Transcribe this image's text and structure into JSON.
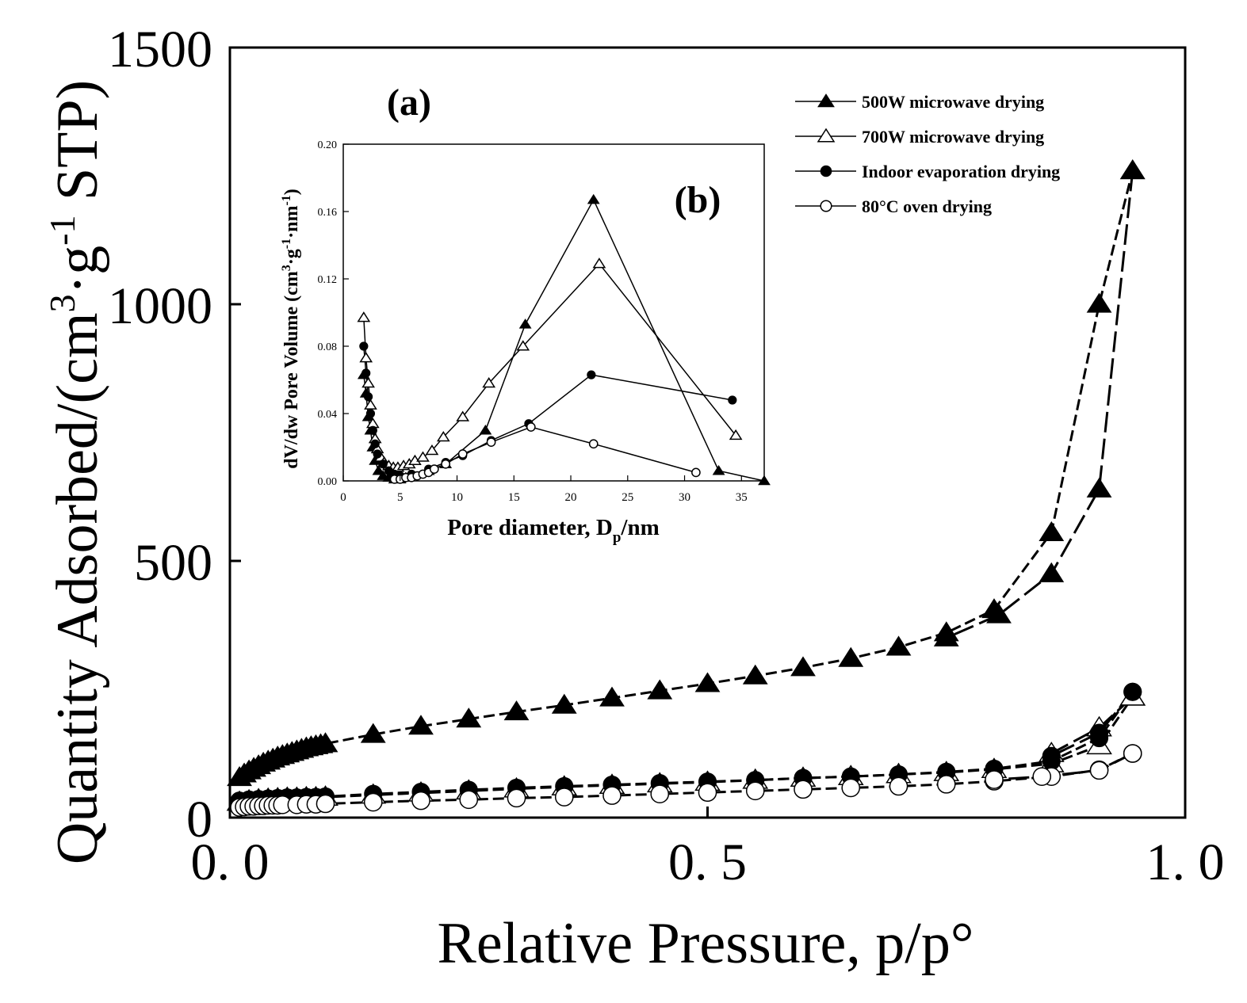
{
  "chart_data": [
    {
      "id": "main",
      "type": "scatter",
      "panel_label": "(a)",
      "title": "",
      "xlabel": "Relative Pressure, p/p°",
      "ylabel_parts": [
        "Quantity Adsorbed/(cm",
        "3",
        "·g",
        "-1",
        " STP)"
      ],
      "xlim": [
        0,
        1.0
      ],
      "ylim": [
        0,
        1500
      ],
      "x_ticks": [
        0,
        0.5,
        1.0
      ],
      "x_tick_labels": [
        "0. 0",
        "0. 5",
        "1. 0"
      ],
      "y_ticks": [
        0,
        500,
        1000,
        1500
      ],
      "y_tick_labels": [
        "0",
        "500",
        "1000",
        "1500"
      ],
      "grid": false,
      "legend_position": "top-right",
      "series": [
        {
          "name": "500W microwave drying",
          "marker": "triangle-filled",
          "adsorption": {
            "x": [
              0.01,
              0.015,
              0.02,
              0.025,
              0.03,
              0.035,
              0.04,
              0.045,
              0.05,
              0.055,
              0.06,
              0.065,
              0.07,
              0.075,
              0.08,
              0.085,
              0.09,
              0.095,
              0.1,
              0.15,
              0.2,
              0.25,
              0.3,
              0.35,
              0.4,
              0.45,
              0.5,
              0.55,
              0.6,
              0.65,
              0.7,
              0.75,
              0.8,
              0.86,
              0.91,
              0.945
            ],
            "y": [
              78,
              85,
              91,
              96,
              101,
              106,
              110,
              114,
              118,
              121,
              124,
              127,
              130,
              133,
              136,
              138,
              140,
              142,
              144,
              162,
              178,
              192,
              206,
              219,
              233,
              247,
              261,
              276,
              292,
              310,
              332,
              360,
              405,
              555,
              1000,
              1260
            ]
          },
          "desorption": {
            "x": [
              0.945,
              0.91,
              0.86,
              0.805,
              0.75
            ],
            "y": [
              1260,
              640,
              475,
              395,
              350
            ]
          }
        },
        {
          "name": "700W microwave drying",
          "marker": "triangle-open",
          "adsorption": {
            "x": [
              0.01,
              0.02,
              0.03,
              0.04,
              0.05,
              0.06,
              0.07,
              0.08,
              0.09,
              0.1,
              0.15,
              0.2,
              0.25,
              0.3,
              0.35,
              0.4,
              0.45,
              0.5,
              0.55,
              0.6,
              0.65,
              0.7,
              0.75,
              0.8,
              0.86,
              0.91,
              0.945
            ],
            "y": [
              30,
              33,
              35,
              36,
              37,
              38,
              38,
              39,
              39,
              40,
              44,
              48,
              52,
              56,
              60,
              63,
              66,
              69,
              73,
              77,
              80,
              84,
              88,
              94,
              105,
              140,
              235
            ]
          },
          "desorption": {
            "x": [
              0.945,
              0.91,
              0.86
            ],
            "y": [
              235,
              175,
              125
            ]
          }
        },
        {
          "name": "Indoor evaporation drying",
          "marker": "circle-filled",
          "adsorption": {
            "x": [
              0.01,
              0.02,
              0.03,
              0.04,
              0.05,
              0.06,
              0.07,
              0.08,
              0.09,
              0.1,
              0.15,
              0.2,
              0.25,
              0.3,
              0.35,
              0.4,
              0.45,
              0.5,
              0.55,
              0.6,
              0.65,
              0.7,
              0.75,
              0.8,
              0.86,
              0.91,
              0.945
            ],
            "y": [
              33,
              35,
              36,
              37,
              38,
              39,
              39,
              40,
              40,
              41,
              46,
              50,
              54,
              58,
              61,
              64,
              67,
              70,
              73,
              77,
              80,
              84,
              89,
              95,
              110,
              155,
              245
            ]
          },
          "desorption": {
            "x": [
              0.945,
              0.91,
              0.86
            ],
            "y": [
              245,
              165,
              120
            ]
          }
        },
        {
          "name": "80°C oven drying",
          "marker": "circle-open",
          "adsorption": {
            "x": [
              0.01,
              0.015,
              0.02,
              0.025,
              0.03,
              0.035,
              0.04,
              0.045,
              0.05,
              0.055,
              0.07,
              0.08,
              0.09,
              0.1,
              0.15,
              0.2,
              0.25,
              0.3,
              0.35,
              0.4,
              0.45,
              0.5,
              0.55,
              0.6,
              0.65,
              0.7,
              0.75,
              0.8,
              0.86,
              0.91,
              0.945
            ],
            "y": [
              20,
              21,
              22,
              22,
              23,
              23,
              24,
              24,
              24,
              25,
              25,
              26,
              26,
              27,
              30,
              33,
              35,
              38,
              40,
              43,
              46,
              49,
              52,
              55,
              58,
              61,
              65,
              71,
              80,
              93,
              125
            ]
          },
          "desorption": {
            "x": [
              0.945,
              0.91,
              0.85,
              0.8
            ],
            "y": [
              125,
              92,
              80,
              74
            ]
          }
        }
      ]
    },
    {
      "id": "inset",
      "type": "line",
      "panel_label": "(b)",
      "title": "",
      "xlabel_parts": [
        "Pore diameter, D",
        "p",
        "/nm"
      ],
      "ylabel_parts": [
        "dV/dw Pore Volume (cm",
        "3",
        "·g",
        "-1",
        "·nm",
        "-1",
        ")"
      ],
      "xlim": [
        0,
        37
      ],
      "ylim": [
        0,
        0.2
      ],
      "x_ticks": [
        0,
        5,
        10,
        15,
        20,
        25,
        30,
        35
      ],
      "x_tick_labels": [
        "0",
        "5",
        "10",
        "15",
        "20",
        "25",
        "30",
        "35"
      ],
      "y_ticks": [
        0,
        0.04,
        0.08,
        0.12,
        0.16,
        0.2
      ],
      "y_tick_labels": [
        "0.00",
        "0.04",
        "0.08",
        "0.12",
        "0.16",
        "0.20"
      ],
      "grid": false,
      "series": [
        {
          "name": "500W microwave drying",
          "marker": "triangle-filled",
          "x": [
            1.8,
            2.0,
            2.2,
            2.4,
            2.6,
            2.8,
            3.1,
            3.5,
            4.0,
            4.5,
            5.0,
            5.5,
            6.0,
            7.5,
            9.0,
            12.5,
            16.0,
            22.0,
            33.0,
            37.0
          ],
          "y": [
            0.063,
            0.052,
            0.038,
            0.03,
            0.02,
            0.012,
            0.006,
            0.003,
            0.002,
            0.001,
            0.001,
            0.002,
            0.003,
            0.006,
            0.01,
            0.03,
            0.093,
            0.167,
            0.006,
            0.0
          ]
        },
        {
          "name": "700W microwave drying",
          "marker": "triangle-open",
          "x": [
            1.8,
            2.0,
            2.2,
            2.4,
            2.6,
            2.8,
            3.0,
            3.3,
            3.6,
            4.0,
            4.4,
            4.8,
            5.3,
            5.8,
            6.3,
            7.0,
            7.8,
            8.8,
            10.5,
            12.8,
            15.8,
            22.5,
            34.5
          ],
          "y": [
            0.097,
            0.073,
            0.058,
            0.045,
            0.034,
            0.025,
            0.019,
            0.014,
            0.011,
            0.009,
            0.008,
            0.008,
            0.009,
            0.01,
            0.012,
            0.014,
            0.018,
            0.026,
            0.038,
            0.058,
            0.08,
            0.129,
            0.027
          ]
        },
        {
          "name": "Indoor evaporation drying",
          "marker": "circle-filled",
          "x": [
            1.8,
            2.0,
            2.2,
            2.4,
            2.6,
            2.8,
            3.0,
            3.5,
            4.0,
            4.5,
            5.0,
            6.0,
            7.5,
            9.0,
            10.5,
            13.0,
            16.3,
            21.8,
            34.2
          ],
          "y": [
            0.08,
            0.064,
            0.05,
            0.04,
            0.03,
            0.022,
            0.016,
            0.01,
            0.006,
            0.004,
            0.003,
            0.004,
            0.007,
            0.011,
            0.015,
            0.024,
            0.034,
            0.063,
            0.048
          ]
        },
        {
          "name": "80°C oven drying",
          "marker": "circle-open",
          "x": [
            4.5,
            5.0,
            5.5,
            6.0,
            6.5,
            7.0,
            7.5,
            8.0,
            9.0,
            10.5,
            13.0,
            16.5,
            22.0,
            31.0
          ],
          "y": [
            0.001,
            0.001,
            0.002,
            0.002,
            0.003,
            0.004,
            0.005,
            0.007,
            0.01,
            0.016,
            0.023,
            0.032,
            0.022,
            0.005
          ]
        }
      ]
    }
  ]
}
